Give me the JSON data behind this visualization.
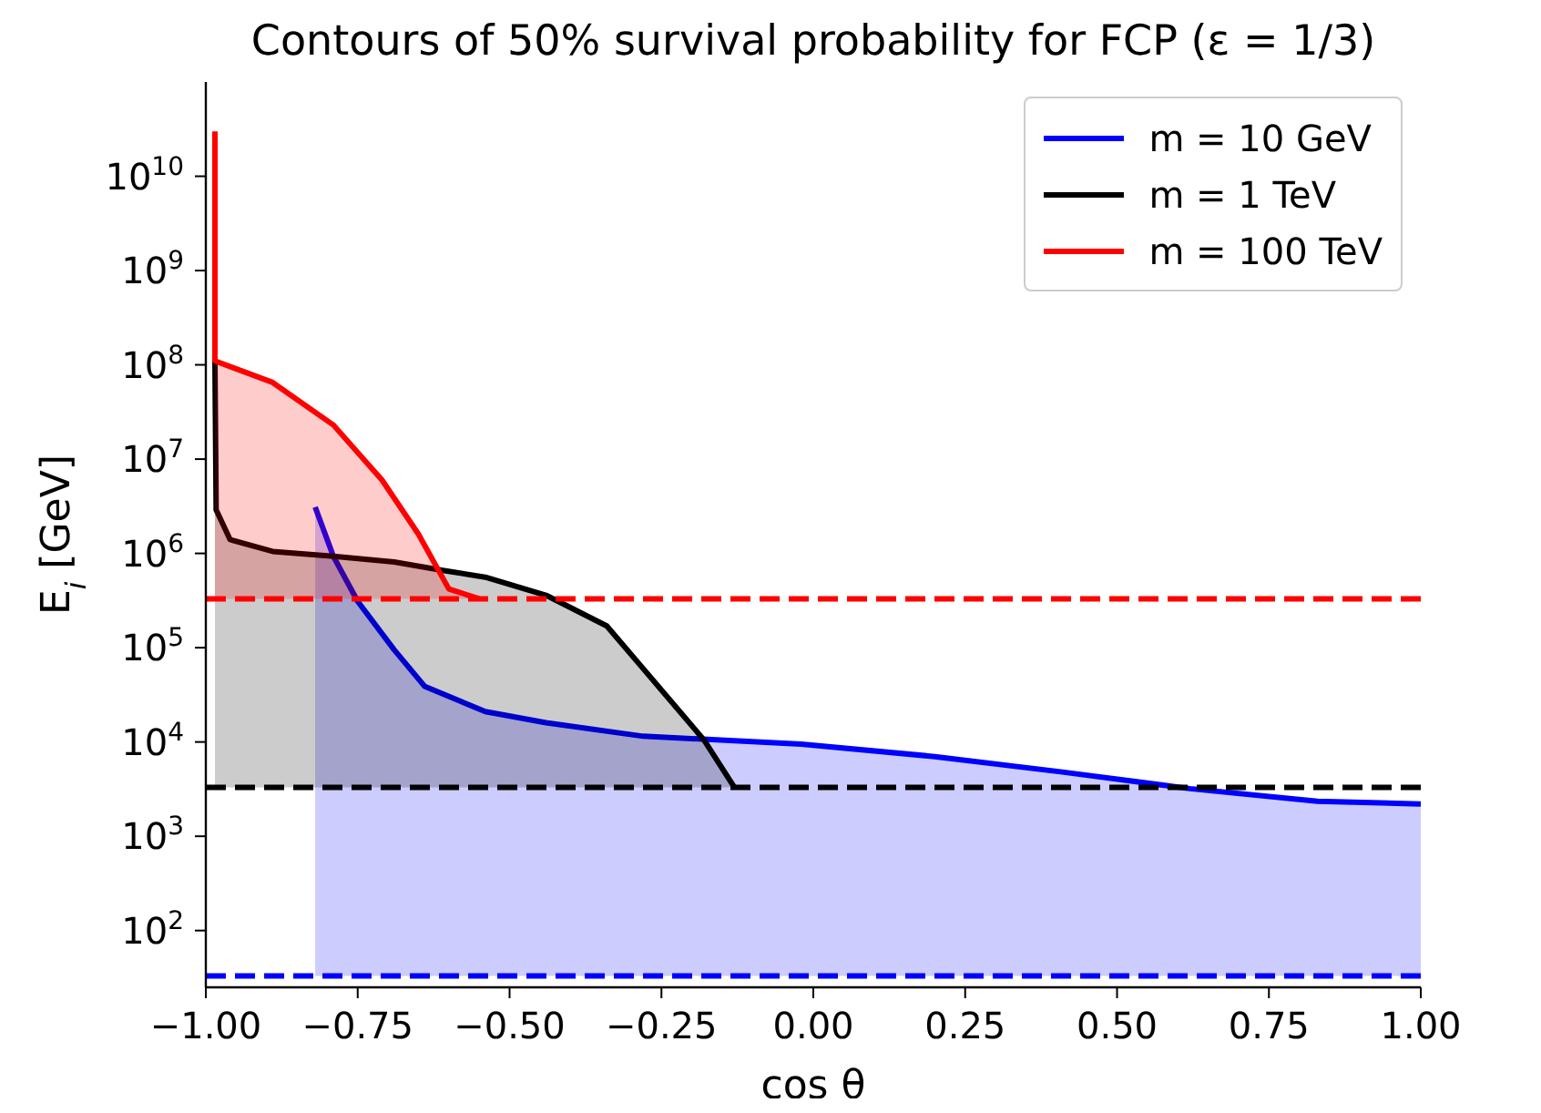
{
  "chart_data": {
    "type": "area",
    "title": "Contours of 50% survival probability for FCP (ε = 1/3)",
    "xlabel": "cos θ",
    "ylabel": "E$_{i}$ [GeV]",
    "log": "y",
    "xlim": [
      -1,
      1
    ],
    "ylim": [
      25,
      100000000000
    ],
    "xticks": [
      {
        "value": -1,
        "label": "−1.00"
      },
      {
        "value": -0.75,
        "label": "−0.75"
      },
      {
        "value": -0.5,
        "label": "−0.50"
      },
      {
        "value": -0.25,
        "label": "−0.25"
      },
      {
        "value": 0,
        "label": "0.00"
      },
      {
        "value": 0.25,
        "label": "0.25"
      },
      {
        "value": 0.5,
        "label": "0.50"
      },
      {
        "value": 0.75,
        "label": "0.75"
      },
      {
        "value": 1,
        "label": "1.00"
      }
    ],
    "yticks": [
      {
        "value": 100,
        "label": "10$^{2}$"
      },
      {
        "value": 1000,
        "label": "10$^{3}$"
      },
      {
        "value": 10000,
        "label": "10$^{4}$"
      },
      {
        "value": 100000,
        "label": "10$^{5}$"
      },
      {
        "value": 1000000,
        "label": "10$^{6}$"
      },
      {
        "value": 10000000,
        "label": "10$^{7}$"
      },
      {
        "value": 100000000,
        "label": "10$^{8}$"
      },
      {
        "value": 1000000000,
        "label": "10$^{9}$"
      },
      {
        "value": 10000000000,
        "label": "10$^{10}$"
      }
    ],
    "series": [
      {
        "name": "m = 10 GeV",
        "color": "#0000ff",
        "x": [
          -0.82,
          -0.79,
          -0.75,
          -0.69,
          -0.64,
          -0.54,
          -0.44,
          -0.28,
          -0.02,
          0.2,
          0.41,
          0.62,
          0.83,
          1.0
        ],
        "values": [
          3100000,
          930000,
          310000,
          95000,
          39000,
          21000,
          16000,
          11500,
          9500,
          7000,
          4800,
          3200,
          2350,
          2200
        ]
      },
      {
        "name": "m = 1 TeV",
        "color": "#000000",
        "x": [
          -0.985,
          -0.983,
          -0.96,
          -0.89,
          -0.79,
          -0.69,
          -0.61,
          -0.54,
          -0.44,
          -0.34,
          -0.28,
          -0.18,
          -0.13
        ],
        "values": [
          110000000,
          2900000,
          1400000,
          1050000,
          930000,
          810000,
          660000,
          560000,
          360000,
          170000,
          60000,
          10500,
          3300
        ]
      },
      {
        "name": "m = 100 TeV",
        "color": "#ff0000",
        "x": [
          -0.985,
          -0.985,
          -0.89,
          -0.79,
          -0.71,
          -0.65,
          -0.6,
          -0.55
        ],
        "values": [
          30000000000,
          110000000,
          65000000,
          23000000,
          6000000,
          1600000,
          420000,
          330000
        ]
      }
    ],
    "ref_lines": [
      {
        "axis": "y",
        "value": 33,
        "color": "#0000ff",
        "line_style": "dashed"
      },
      {
        "axis": "y",
        "value": 3300,
        "color": "#000000",
        "line_style": "dashed"
      },
      {
        "axis": "y",
        "value": 330000,
        "color": "#ff0000",
        "line_style": "dashed"
      }
    ],
    "legend": "top right",
    "marker": "none",
    "line_style": "solid"
  }
}
